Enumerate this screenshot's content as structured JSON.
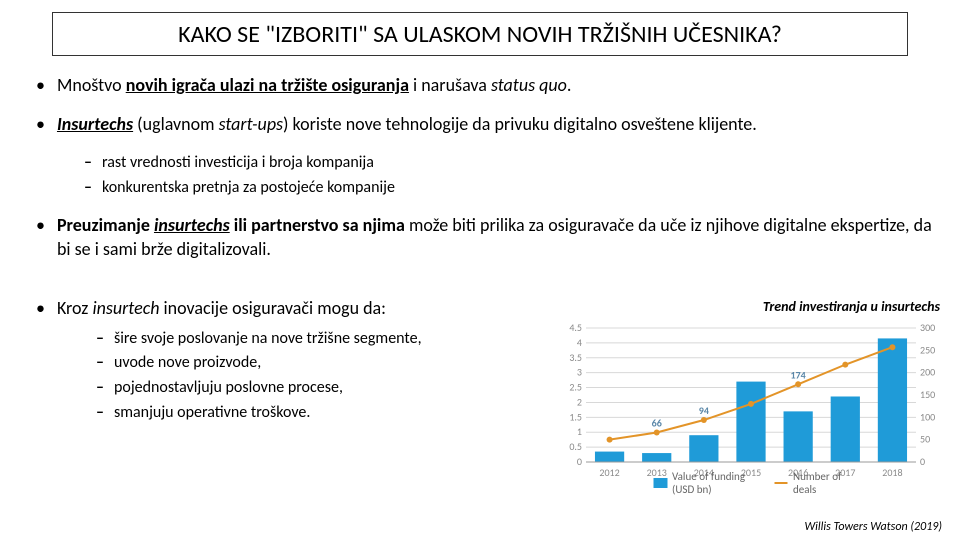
{
  "title": "KAKO SE \"IZBORITI\" SA ULASKOM NOVIH TRŽIŠNIH UČESNIKA?",
  "bullets": {
    "b1_pre": "Mnoštvo ",
    "b1_bold": "novih igrača ulazi na tržište osiguranja",
    "b1_post": " i narušava ",
    "b1_ital": "status quo",
    "b1_end": ".",
    "b2_bold": "Insurtechs",
    "b2_mid": "  (uglavnom ",
    "b2_ital": "start-ups",
    "b2_post": ") koriste nove tehnologije da privuku digitalno osveštene klijente.",
    "b2_sub1": "rast vrednosti investicija i broja kompanija",
    "b2_sub2": "konkurentska pretnja za postojeće kompanije",
    "b3_bold1": "Preuzimanje ",
    "b3_ital": "insurtechs",
    "b3_bold2": " ili partnerstvo sa njima",
    "b3_post": " može biti prilika za osiguravače da uče iz njihove digitalne ekspertize, da bi se i sami brže digitalizovali.",
    "b4_pre": "Kroz ",
    "b4_ital": "insurtech",
    "b4_post": " inovacije osiguravači mogu da:",
    "b4_sub1": "šire svoje poslovanje  na nove tržišne segmente,",
    "b4_sub2": "uvode nove proizvode,",
    "b4_sub3": "pojednostavljuju poslovne procese,",
    "b4_sub4": "smanjuju operativne troškove."
  },
  "chart": {
    "caption": "Trend investiranja u insurtechs",
    "years": [
      "2012",
      "2013",
      "2014",
      "2015",
      "2016",
      "2017",
      "2018"
    ],
    "bar_values": [
      0.35,
      0.3,
      0.9,
      2.7,
      1.7,
      2.2,
      4.15
    ],
    "line_values": [
      50,
      66,
      94,
      130,
      174,
      218,
      257
    ],
    "bar_labels": [
      "",
      "",
      "",
      "",
      "",
      "",
      ""
    ],
    "line_labels": [
      "",
      "66",
      "94",
      "",
      "174",
      "",
      ""
    ],
    "y1_ticks": [
      "0",
      "0.5",
      "1",
      "1.5",
      "2",
      "2.5",
      "3",
      "3.5",
      "4",
      "4.5"
    ],
    "y2_ticks": [
      "0",
      "50",
      "100",
      "150",
      "200",
      "250",
      "300"
    ],
    "y1_max": 4.5,
    "y2_max": 300,
    "bar_color": "#1f9bd8",
    "line_color": "#e39428",
    "grid_color": "#d8d8d8",
    "axis_color": "#999999",
    "label_color": "#8a8a8a",
    "line_label_color": "#5a87a8",
    "background": "#ffffff",
    "legend_value": "Value of funding (USD bn)",
    "legend_deals": "Number of deals"
  },
  "source": "Willis Towers Watson (2019)"
}
